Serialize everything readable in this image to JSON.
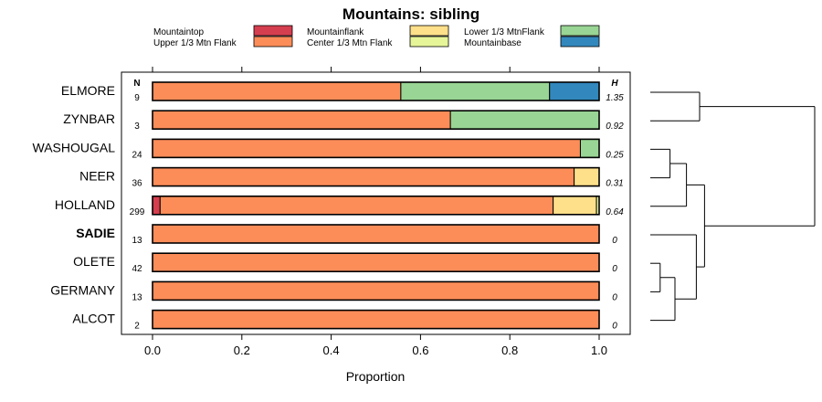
{
  "chart_data": {
    "type": "stacked-bar-horizontal",
    "title": "Mountains: sibling",
    "xlabel": "Proportion",
    "xlim": [
      0,
      1
    ],
    "xticks": [
      "0.0",
      "0.2",
      "0.4",
      "0.6",
      "0.8",
      "1.0"
    ],
    "n_header": "N",
    "h_header": "H",
    "legend": [
      {
        "name": "Mountaintop",
        "color": "#d53e4f"
      },
      {
        "name": "Upper 1/3 Mtn Flank",
        "color": "#fc8d59"
      },
      {
        "name": "Mountainflank",
        "color": "#fee08b"
      },
      {
        "name": "Center 1/3 Mtn Flank",
        "color": "#e6f598"
      },
      {
        "name": "Lower 1/3 MtnFlank",
        "color": "#99d594"
      },
      {
        "name": "Mountainbase",
        "color": "#3288bd"
      }
    ],
    "rows": [
      {
        "label": "ELMORE",
        "bold": false,
        "n": "9",
        "h": "1.35",
        "segments": [
          0,
          0.556,
          0,
          0,
          0.333,
          0.111
        ]
      },
      {
        "label": "ZYNBAR",
        "bold": false,
        "n": "3",
        "h": "0.92",
        "segments": [
          0,
          0.667,
          0,
          0,
          0.333,
          0
        ]
      },
      {
        "label": "WASHOUGAL",
        "bold": false,
        "n": "24",
        "h": "0.25",
        "segments": [
          0,
          0.958,
          0,
          0,
          0.042,
          0
        ]
      },
      {
        "label": "NEER",
        "bold": false,
        "n": "36",
        "h": "0.31",
        "segments": [
          0,
          0.944,
          0.056,
          0,
          0,
          0
        ]
      },
      {
        "label": "HOLLAND",
        "bold": false,
        "n": "299",
        "h": "0.64",
        "segments": [
          0.017,
          0.88,
          0.097,
          0.006,
          0,
          0
        ]
      },
      {
        "label": "SADIE",
        "bold": true,
        "n": "13",
        "h": "0",
        "segments": [
          0,
          1,
          0,
          0,
          0,
          0
        ]
      },
      {
        "label": "OLETE",
        "bold": false,
        "n": "42",
        "h": "0",
        "segments": [
          0,
          1,
          0,
          0,
          0,
          0
        ]
      },
      {
        "label": "GERMANY",
        "bold": false,
        "n": "13",
        "h": "0",
        "segments": [
          0,
          1,
          0,
          0,
          0,
          0
        ]
      },
      {
        "label": "ALCOT",
        "bold": false,
        "n": "2",
        "h": "0",
        "segments": [
          0,
          1,
          0,
          0,
          0,
          0
        ]
      }
    ],
    "dendrogram": {
      "leaf_order": [
        "ELMORE",
        "ZYNBAR",
        "WASHOUGAL",
        "NEER",
        "HOLLAND",
        "SADIE",
        "OLETE",
        "GERMANY",
        "ALCOT"
      ],
      "merges": [
        {
          "a": "ELMORE",
          "b": "ZYNBAR",
          "height": 0.3
        },
        {
          "a": "WASHOUGAL",
          "b": "NEER",
          "height": 0.12
        },
        {
          "a": "WASHOUGAL+NEER",
          "b": "HOLLAND",
          "height": 0.22
        },
        {
          "a": "OLETE",
          "b": "GERMANY",
          "height": 0.06
        },
        {
          "a": "OLETE+GERMANY",
          "b": "ALCOT",
          "height": 0.15
        },
        {
          "a": "SADIE",
          "b": "OLETE+GERMANY+ALCOT",
          "height": 0.28
        },
        {
          "a": "WASHOUGAL+NEER+HOLLAND",
          "b": "SADIE+OLETE+GERMANY+ALCOT",
          "height": 0.33
        },
        {
          "a": "ELMORE+ZYNBAR",
          "b": "WASHOUGAL+NEER+HOLLAND+SADIE+OLETE+GERMANY+ALCOT",
          "height": 1.0
        }
      ]
    }
  }
}
